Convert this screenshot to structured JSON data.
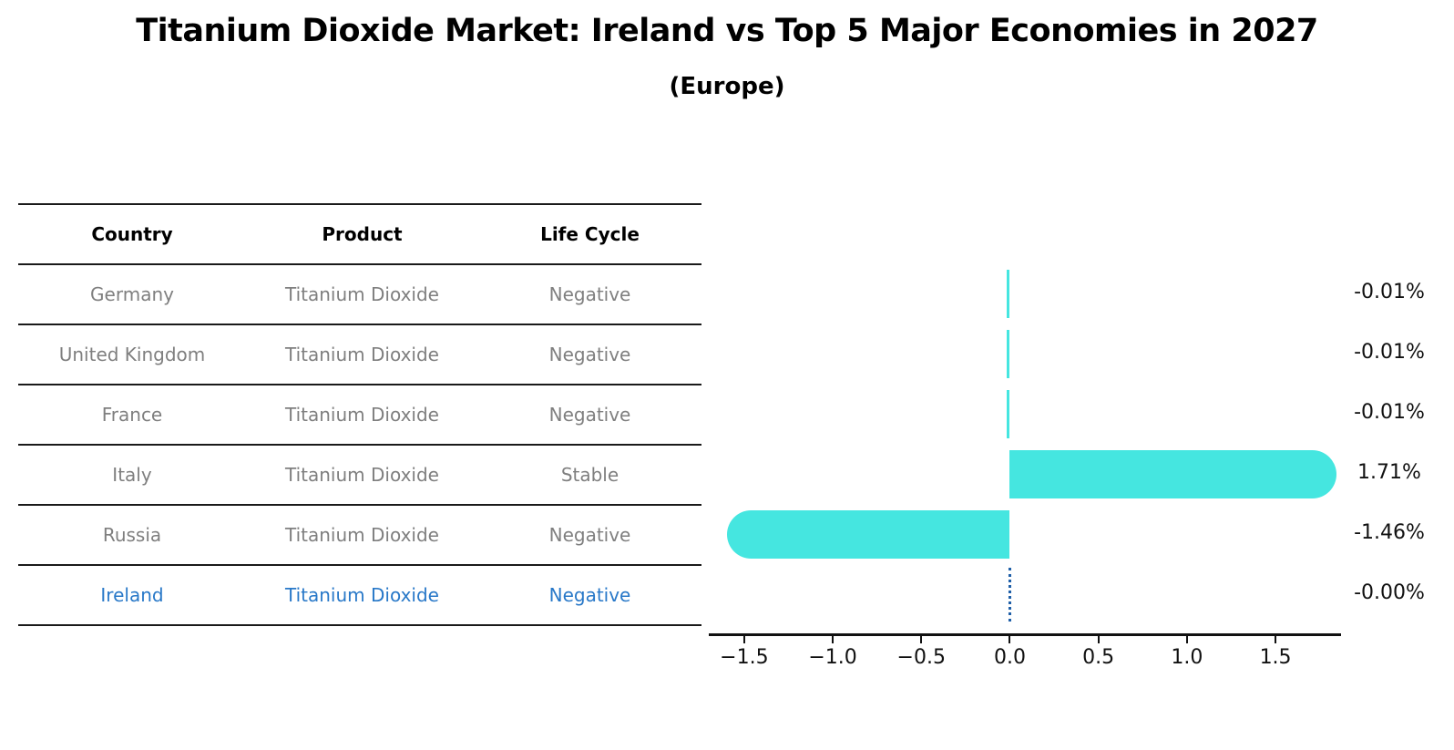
{
  "title": "Titanium Dioxide Market: Ireland vs Top 5 Major Economies in 2027",
  "subtitle": "(Europe)",
  "table": {
    "headers": [
      "Country",
      "Product",
      "Life Cycle"
    ],
    "rows": [
      {
        "country": "Germany",
        "product": "Titanium Dioxide",
        "life_cycle": "Negative",
        "highlight": false
      },
      {
        "country": "United Kingdom",
        "product": "Titanium Dioxide",
        "life_cycle": "Negative",
        "highlight": false
      },
      {
        "country": "France",
        "product": "Titanium Dioxide",
        "life_cycle": "Negative",
        "highlight": false
      },
      {
        "country": "Italy",
        "product": "Titanium Dioxide",
        "life_cycle": "Stable",
        "highlight": false
      },
      {
        "country": "Russia",
        "product": "Titanium Dioxide",
        "life_cycle": "Negative",
        "highlight": false
      },
      {
        "country": "Ireland",
        "product": "Titanium Dioxide",
        "life_cycle": "Negative",
        "highlight": true
      }
    ]
  },
  "chart_data": {
    "type": "bar",
    "orientation": "horizontal",
    "categories": [
      "Germany",
      "United Kingdom",
      "France",
      "Italy",
      "Russia",
      "Ireland"
    ],
    "values": [
      -0.01,
      -0.01,
      -0.01,
      1.71,
      -1.46,
      -0.0
    ],
    "value_labels": [
      "-0.01%",
      "-0.01%",
      "-0.01%",
      "1.71%",
      "-1.46%",
      "-0.00%"
    ],
    "x_ticks": [
      -1.5,
      -1.0,
      -0.5,
      0.0,
      0.5,
      1.0,
      1.5
    ],
    "x_tick_labels": [
      "−1.5",
      "−1.0",
      "−0.5",
      "0.0",
      "0.5",
      "1.0",
      "1.5"
    ],
    "xlim": [
      -1.7,
      1.87
    ],
    "grid": false,
    "legend": "none",
    "ireland_marker": "dotted-vertical-line-at-zero",
    "bar_color": "#45e6e0",
    "dotted_line_color": "#1f5fa8"
  },
  "colors": {
    "highlight": "#2878c8",
    "bar": "#45e6e0",
    "dotted": "#1f5fa8",
    "table_text": "#7f7f7f",
    "axis": "#111111"
  }
}
